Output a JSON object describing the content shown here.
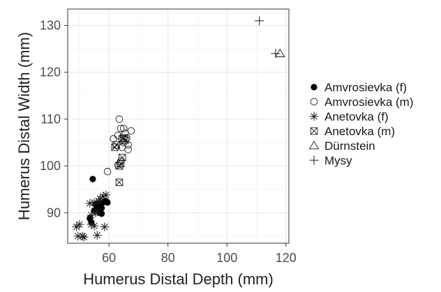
{
  "chart_data": {
    "type": "scatter",
    "title": "",
    "xlabel": "Humerus Distal Depth (mm)",
    "ylabel": "Humerus Distal Width (mm)",
    "xlim": [
      46,
      121
    ],
    "ylim": [
      83.5,
      133.5
    ],
    "x_ticks": [
      60,
      80,
      100,
      120
    ],
    "y_ticks": [
      90,
      100,
      110,
      120,
      130
    ],
    "grid": true,
    "legend_position": "right",
    "series": [
      {
        "name": "Amvrosievka (f)",
        "marker": "filled-circle",
        "points": [
          [
            54.5,
            97.2
          ],
          [
            53.5,
            88.8
          ],
          [
            54.0,
            88.0
          ],
          [
            55.0,
            90.5
          ],
          [
            56.0,
            91.2
          ],
          [
            56.5,
            92.0
          ],
          [
            57.0,
            90.0
          ],
          [
            57.5,
            89.8
          ],
          [
            58.0,
            92.2
          ],
          [
            59.0,
            92.5
          ],
          [
            59.5,
            92.2
          ],
          [
            55.5,
            91.8
          ],
          [
            57.5,
            91.0
          ]
        ]
      },
      {
        "name": "Amvrosievka (m)",
        "marker": "open-circle",
        "points": [
          [
            63.5,
            110.0
          ],
          [
            61.5,
            105.8
          ],
          [
            63.0,
            106.5
          ],
          [
            64.0,
            108.0
          ],
          [
            65.0,
            108.0
          ],
          [
            65.5,
            107.0
          ],
          [
            66.0,
            106.0
          ],
          [
            66.5,
            104.5
          ],
          [
            67.5,
            107.5
          ],
          [
            66.5,
            103.5
          ],
          [
            64.5,
            104.0
          ],
          [
            63.0,
            100.2
          ],
          [
            64.0,
            101.0
          ],
          [
            59.5,
            98.8
          ],
          [
            65.0,
            105.0
          ]
        ]
      },
      {
        "name": "Anetovka (f)",
        "marker": "asterisk",
        "points": [
          [
            49.0,
            87.0
          ],
          [
            50.0,
            87.5
          ],
          [
            49.5,
            85.0
          ],
          [
            51.0,
            85.0
          ],
          [
            51.5,
            84.8
          ],
          [
            54.0,
            87.5
          ],
          [
            55.0,
            87.2
          ],
          [
            56.0,
            85.2
          ],
          [
            58.5,
            87.0
          ],
          [
            53.5,
            92.0
          ],
          [
            55.0,
            92.2
          ],
          [
            56.5,
            92.5
          ],
          [
            57.0,
            93.0
          ],
          [
            58.0,
            93.5
          ],
          [
            59.0,
            93.8
          ],
          [
            54.0,
            89.5
          ],
          [
            55.5,
            90.0
          ],
          [
            56.0,
            90.2
          ]
        ]
      },
      {
        "name": "Anetovka (m)",
        "marker": "boxed-x",
        "points": [
          [
            62.0,
            104.0
          ],
          [
            62.5,
            104.5
          ],
          [
            64.5,
            105.8
          ],
          [
            65.0,
            106.0
          ],
          [
            65.5,
            105.5
          ],
          [
            64.5,
            101.8
          ],
          [
            64.0,
            100.5
          ],
          [
            63.5,
            100.0
          ],
          [
            63.5,
            96.5
          ]
        ]
      },
      {
        "name": "Dürnstein",
        "marker": "open-triangle",
        "points": [
          [
            118.0,
            124.0
          ]
        ]
      },
      {
        "name": "Mysy",
        "marker": "plus",
        "points": [
          [
            111.0,
            131.0
          ],
          [
            116.5,
            124.0
          ]
        ]
      }
    ]
  }
}
